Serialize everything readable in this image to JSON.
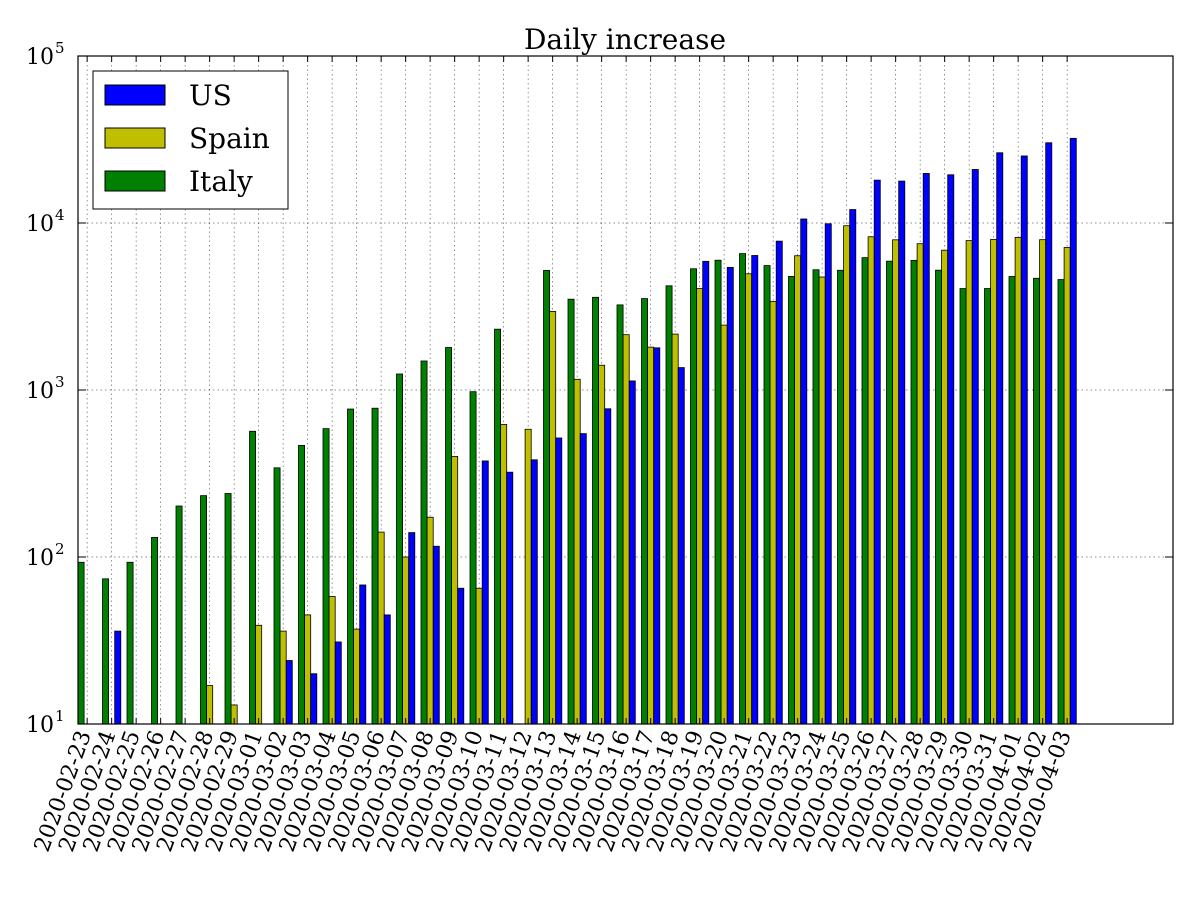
{
  "chart_data": {
    "type": "bar",
    "title": "Daily increase",
    "xlabel": "",
    "ylabel": "",
    "yscale": "log",
    "ylim": [
      10,
      100000
    ],
    "y_ticks": [
      {
        "value": 10,
        "base": "10",
        "exp": "1"
      },
      {
        "value": 100,
        "base": "10",
        "exp": "2"
      },
      {
        "value": 1000,
        "base": "10",
        "exp": "3"
      },
      {
        "value": 10000,
        "base": "10",
        "exp": "4"
      },
      {
        "value": 100000,
        "base": "10",
        "exp": "5"
      }
    ],
    "grid": true,
    "legend_position": "top-left",
    "categories": [
      "2020-02-23",
      "2020-02-24",
      "2020-02-25",
      "2020-02-26",
      "2020-02-27",
      "2020-02-28",
      "2020-02-29",
      "2020-03-01",
      "2020-03-02",
      "2020-03-03",
      "2020-03-04",
      "2020-03-05",
      "2020-03-06",
      "2020-03-07",
      "2020-03-08",
      "2020-03-09",
      "2020-03-10",
      "2020-03-11",
      "2020-03-12",
      "2020-03-13",
      "2020-03-14",
      "2020-03-15",
      "2020-03-16",
      "2020-03-17",
      "2020-03-18",
      "2020-03-19",
      "2020-03-20",
      "2020-03-21",
      "2020-03-22",
      "2020-03-23",
      "2020-03-24",
      "2020-03-25",
      "2020-03-26",
      "2020-03-27",
      "2020-03-28",
      "2020-03-29",
      "2020-03-30",
      "2020-03-31",
      "2020-04-01",
      "2020-04-02",
      "2020-04-03"
    ],
    "series": [
      {
        "name": "Italy",
        "color": "#008000",
        "values": [
          93,
          74,
          93,
          131,
          202,
          233,
          240,
          566,
          342,
          466,
          587,
          769,
          778,
          1247,
          1492,
          1797,
          977,
          2313,
          null,
          5198,
          3497,
          3590,
          3233,
          3526,
          4207,
          5322,
          5986,
          6557,
          5560,
          4789,
          5249,
          5210,
          6203,
          5909,
          5974,
          5217,
          4050,
          4053,
          4782,
          4668,
          4585
        ]
      },
      {
        "name": "Spain",
        "color": "#bfbf00",
        "values": [
          null,
          null,
          null,
          null,
          null,
          17,
          13,
          39,
          36,
          45,
          58,
          37,
          141,
          100,
          173,
          400,
          65,
          622,
          582,
          2955,
          1159,
          1407,
          2144,
          1806,
          2162,
          4053,
          2447,
          4964,
          3394,
          6368,
          4749,
          9630,
          8271,
          7933,
          7516,
          6875,
          7846,
          7967,
          8195,
          7947,
          7134
        ]
      },
      {
        "name": "US",
        "color": "#0000ff",
        "values": [
          null,
          36,
          null,
          null,
          null,
          null,
          null,
          null,
          24,
          20,
          31,
          68,
          45,
          140,
          116,
          65,
          376,
          322,
          382,
          516,
          548,
          772,
          1133,
          1789,
          1362,
          5894,
          5423,
          6389,
          7787,
          10571,
          9893,
          12038,
          18058,
          17821,
          19808,
          19444,
          20922,
          26341,
          25200,
          30227,
          32133
        ]
      }
    ],
    "legend": [
      {
        "name": "US",
        "color": "#0000ff"
      },
      {
        "name": "Spain",
        "color": "#bfbf00"
      },
      {
        "name": "Italy",
        "color": "#008000"
      }
    ]
  }
}
